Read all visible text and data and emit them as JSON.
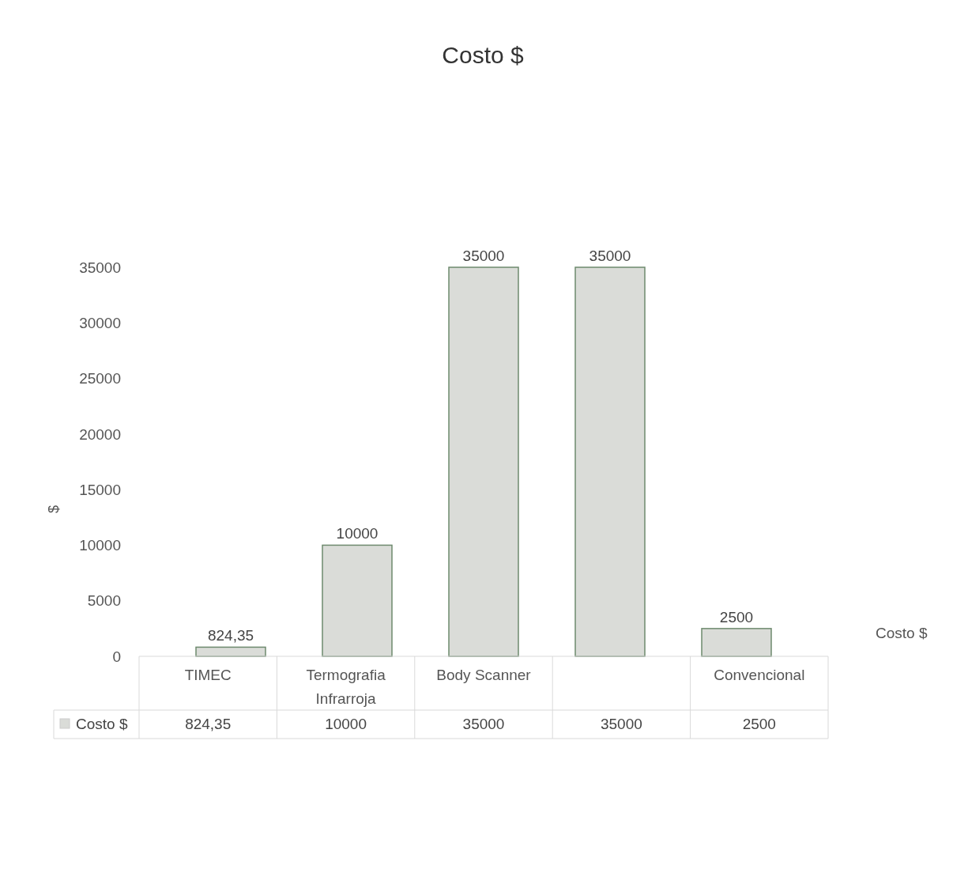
{
  "chart_data": {
    "type": "bar",
    "title": "Costo $",
    "ylabel": "$",
    "categories": [
      "TIMEC",
      "Termografia Infrarroja",
      "Body Scanner",
      null,
      "Convencional"
    ],
    "series": [
      {
        "name": "Costo $",
        "color": "#dadcd8",
        "values": [
          824.35,
          10000,
          35000,
          35000,
          2500
        ],
        "value_labels": [
          "824,35",
          "10000",
          "35000",
          "35000",
          "2500"
        ]
      }
    ],
    "ylim": [
      0,
      35000
    ],
    "yticks": [
      0,
      5000,
      10000,
      15000,
      20000,
      25000,
      30000,
      35000
    ],
    "legend": "bottom left",
    "grid": false
  }
}
